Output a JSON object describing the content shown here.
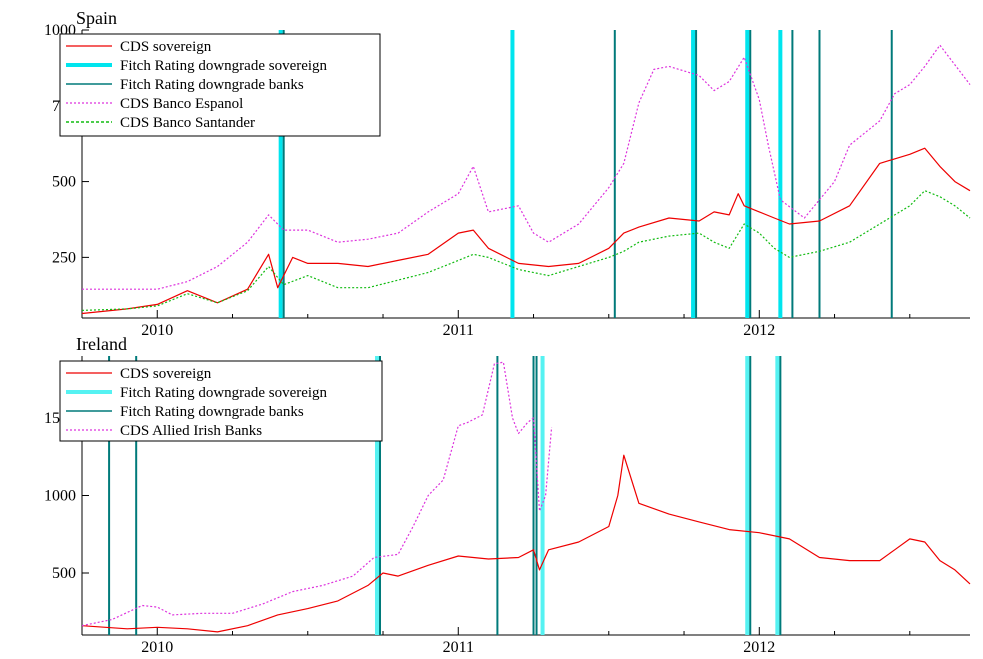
{
  "chart_data": [
    {
      "type": "line",
      "title": "Spain",
      "xlabel": "",
      "ylabel": "",
      "xlim": [
        2009.75,
        2012.7
      ],
      "ylim": [
        50,
        1000
      ],
      "x_ticks": [
        2010,
        2011,
        2012
      ],
      "x_tick_labels": [
        "2010",
        "2011",
        "2012"
      ],
      "y_ticks": [
        250,
        500,
        750,
        1000
      ],
      "y_tick_labels": [
        "250",
        "500",
        "750",
        "1000"
      ],
      "legend_position": "top-left",
      "colors": {
        "sovereign": "#ee0000",
        "downgrade_sovereign": "#00e5ee",
        "downgrade_banks": "#007a7a",
        "bank1": "#dd33dd",
        "bank2": "#11bb11"
      },
      "legend": [
        "CDS sovereign",
        "Fitch Rating downgrade sovereign",
        "Fitch Rating downgrade banks",
        "CDS Banco Espanol",
        "CDS Banco Santander"
      ],
      "downgrade_sovereign_dates": [
        2010.41,
        2011.18,
        2011.78,
        2011.96,
        2012.07
      ],
      "downgrade_banks_dates": [
        2010.42,
        2011.52,
        2011.79,
        2011.97,
        2012.11,
        2012.2,
        2012.44
      ],
      "series": [
        {
          "name": "CDS sovereign",
          "style": "solid",
          "x": [
            2009.75,
            2009.9,
            2010.0,
            2010.1,
            2010.2,
            2010.3,
            2010.37,
            2010.4,
            2010.45,
            2010.5,
            2010.6,
            2010.7,
            2010.8,
            2010.9,
            2011.0,
            2011.05,
            2011.1,
            2011.2,
            2011.3,
            2011.4,
            2011.5,
            2011.55,
            2011.6,
            2011.7,
            2011.8,
            2011.85,
            2011.9,
            2011.93,
            2011.95,
            2012.0,
            2012.05,
            2012.1,
            2012.2,
            2012.3,
            2012.4,
            2012.5,
            2012.55,
            2012.6,
            2012.65,
            2012.7
          ],
          "values": [
            65,
            80,
            95,
            140,
            100,
            145,
            260,
            150,
            250,
            230,
            230,
            220,
            240,
            260,
            330,
            340,
            280,
            230,
            220,
            230,
            280,
            330,
            350,
            380,
            370,
            400,
            390,
            460,
            420,
            400,
            380,
            360,
            370,
            420,
            560,
            590,
            610,
            550,
            500,
            470
          ]
        },
        {
          "name": "CDS Banco Espanol",
          "style": "dotted",
          "x": [
            2009.75,
            2009.9,
            2010.0,
            2010.1,
            2010.2,
            2010.3,
            2010.37,
            2010.42,
            2010.5,
            2010.6,
            2010.7,
            2010.8,
            2010.9,
            2011.0,
            2011.05,
            2011.1,
            2011.2,
            2011.25,
            2011.3,
            2011.4,
            2011.5,
            2011.55,
            2011.6,
            2011.65,
            2011.7,
            2011.8,
            2011.85,
            2011.9,
            2011.95,
            2012.0,
            2012.03,
            2012.07,
            2012.15,
            2012.25,
            2012.3,
            2012.4,
            2012.45,
            2012.5,
            2012.55,
            2012.6,
            2012.7
          ],
          "values": [
            145,
            145,
            145,
            170,
            220,
            300,
            390,
            340,
            340,
            300,
            310,
            330,
            400,
            460,
            550,
            400,
            420,
            330,
            300,
            360,
            480,
            560,
            760,
            870,
            880,
            850,
            800,
            830,
            910,
            770,
            620,
            440,
            380,
            500,
            620,
            700,
            790,
            820,
            880,
            950,
            820
          ]
        },
        {
          "name": "CDS Banco Santander",
          "style": "dotted",
          "x": [
            2009.75,
            2009.9,
            2010.0,
            2010.1,
            2010.2,
            2010.3,
            2010.37,
            2010.42,
            2010.5,
            2010.6,
            2010.7,
            2010.8,
            2010.9,
            2011.0,
            2011.05,
            2011.1,
            2011.2,
            2011.3,
            2011.4,
            2011.5,
            2011.55,
            2011.6,
            2011.7,
            2011.8,
            2011.85,
            2011.9,
            2011.95,
            2012.0,
            2012.05,
            2012.1,
            2012.2,
            2012.3,
            2012.4,
            2012.5,
            2012.55,
            2012.6,
            2012.65,
            2012.7
          ],
          "values": [
            75,
            80,
            90,
            130,
            100,
            140,
            220,
            160,
            190,
            150,
            150,
            175,
            200,
            240,
            260,
            250,
            210,
            190,
            220,
            250,
            270,
            300,
            320,
            330,
            300,
            280,
            360,
            330,
            280,
            250,
            270,
            300,
            360,
            420,
            470,
            450,
            420,
            380
          ]
        }
      ]
    },
    {
      "type": "line",
      "title": "Ireland",
      "xlabel": "",
      "ylabel": "",
      "xlim": [
        2009.75,
        2012.7
      ],
      "ylim": [
        100,
        1900
      ],
      "x_ticks": [
        2010,
        2011,
        2012
      ],
      "x_tick_labels": [
        "2010",
        "2011",
        "2012"
      ],
      "y_ticks": [
        500,
        1000,
        1500
      ],
      "y_tick_labels": [
        "500",
        "1000",
        "1500"
      ],
      "legend_position": "top-left",
      "colors": {
        "sovereign": "#ee0000",
        "downgrade_sovereign": "#55f2f2",
        "downgrade_banks": "#007a7a",
        "bank1": "#dd33dd"
      },
      "legend": [
        "CDS sovereign",
        "Fitch Rating downgrade sovereign",
        "Fitch Rating downgrade banks",
        "CDS Allied Irish Banks"
      ],
      "downgrade_sovereign_dates": [
        2010.73,
        2011.28,
        2011.96,
        2012.06
      ],
      "downgrade_banks_dates": [
        2009.84,
        2009.93,
        2010.74,
        2011.13,
        2011.25,
        2011.26,
        2011.97,
        2012.07
      ],
      "series": [
        {
          "name": "CDS sovereign",
          "style": "solid",
          "x": [
            2009.75,
            2009.9,
            2010.0,
            2010.1,
            2010.2,
            2010.3,
            2010.4,
            2010.5,
            2010.6,
            2010.7,
            2010.75,
            2010.8,
            2010.9,
            2011.0,
            2011.1,
            2011.2,
            2011.25,
            2011.27,
            2011.3,
            2011.4,
            2011.5,
            2011.53,
            2011.55,
            2011.6,
            2011.7,
            2011.8,
            2011.9,
            2012.0,
            2012.1,
            2012.2,
            2012.3,
            2012.4,
            2012.45,
            2012.5,
            2012.55,
            2012.6,
            2012.65,
            2012.7
          ],
          "values": [
            160,
            140,
            150,
            140,
            120,
            160,
            230,
            270,
            320,
            420,
            500,
            480,
            550,
            610,
            590,
            600,
            650,
            520,
            650,
            700,
            800,
            1000,
            1260,
            950,
            880,
            830,
            780,
            760,
            720,
            600,
            580,
            580,
            650,
            720,
            700,
            580,
            520,
            430
          ]
        },
        {
          "name": "CDS Allied Irish Banks",
          "style": "dotted",
          "x": [
            2009.75,
            2009.85,
            2009.95,
            2010.0,
            2010.05,
            2010.15,
            2010.25,
            2010.35,
            2010.45,
            2010.55,
            2010.65,
            2010.72,
            2010.8,
            2010.85,
            2010.9,
            2010.95,
            2011.0,
            2011.03,
            2011.08,
            2011.12,
            2011.15,
            2011.18,
            2011.2,
            2011.23,
            2011.25,
            2011.27,
            2011.29,
            2011.31
          ],
          "values": [
            160,
            200,
            290,
            280,
            230,
            240,
            240,
            300,
            380,
            420,
            480,
            600,
            620,
            800,
            1000,
            1100,
            1450,
            1470,
            1520,
            1850,
            1860,
            1500,
            1400,
            1470,
            1500,
            900,
            1000,
            1440
          ]
        }
      ]
    }
  ]
}
